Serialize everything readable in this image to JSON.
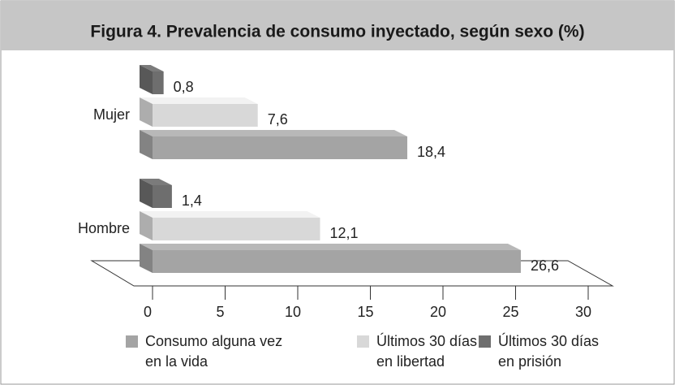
{
  "chart_data": {
    "type": "bar3d",
    "orientation": "horizontal",
    "title": "Figura 4. Prevalencia de consumo inyectado, según sexo (%)",
    "categories": [
      "Mujer",
      "Hombre"
    ],
    "series": [
      {
        "name": "Consumo alguna vez en la vida",
        "color": "#a4a4a4",
        "values": [
          18.4,
          26.6
        ],
        "value_labels": [
          "18,4",
          "26,6"
        ]
      },
      {
        "name": "Últimos 30 días en libertad",
        "color": "#d8d8d8",
        "values": [
          7.6,
          12.1
        ],
        "value_labels": [
          "7,6",
          "12,1"
        ]
      },
      {
        "name": "Últimos 30 días en prisión",
        "color": "#6e6e6e",
        "values": [
          0.8,
          1.4
        ],
        "value_labels": [
          "0,8",
          "1,4"
        ]
      }
    ],
    "xlim": [
      0,
      30
    ],
    "xticks": [
      0,
      5,
      10,
      15,
      20,
      25,
      30
    ]
  }
}
